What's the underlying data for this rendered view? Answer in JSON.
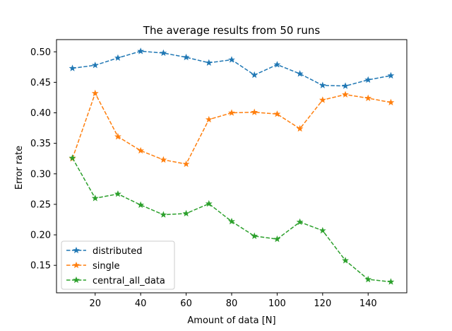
{
  "chart_data": {
    "type": "line",
    "title": "The average results from 50 runs",
    "xlabel": "Amount of data [N]",
    "ylabel": "Error rate",
    "x": [
      10,
      20,
      30,
      40,
      50,
      60,
      70,
      80,
      90,
      100,
      110,
      120,
      130,
      140,
      150
    ],
    "xlim": [
      3,
      157
    ],
    "ylim": [
      0.105,
      0.52
    ],
    "xticks": [
      20,
      40,
      60,
      80,
      100,
      120,
      140
    ],
    "yticks": [
      0.15,
      0.2,
      0.25,
      0.3,
      0.35,
      0.4,
      0.45,
      0.5
    ],
    "xtick_labels": [
      "20",
      "40",
      "60",
      "80",
      "100",
      "120",
      "140"
    ],
    "ytick_labels": [
      "0.15",
      "0.20",
      "0.25",
      "0.30",
      "0.35",
      "0.40",
      "0.45",
      "0.50"
    ],
    "grid": false,
    "legend_position": "lower-left",
    "marker": "star",
    "line_style": "dashed",
    "series": [
      {
        "name": "distributed",
        "color": "#1f77b4",
        "values": [
          0.473,
          0.478,
          0.49,
          0.501,
          0.498,
          0.491,
          0.482,
          0.487,
          0.462,
          0.479,
          0.464,
          0.445,
          0.444,
          0.454,
          0.461
        ]
      },
      {
        "name": "single",
        "color": "#ff7f0e",
        "values": [
          0.325,
          0.432,
          0.361,
          0.338,
          0.323,
          0.316,
          0.389,
          0.4,
          0.401,
          0.398,
          0.374,
          0.421,
          0.43,
          0.424,
          0.417
        ]
      },
      {
        "name": "central_all_data",
        "color": "#2ca02c",
        "values": [
          0.326,
          0.26,
          0.267,
          0.249,
          0.233,
          0.235,
          0.251,
          0.222,
          0.198,
          0.193,
          0.221,
          0.207,
          0.158,
          0.127,
          0.123
        ]
      }
    ]
  }
}
